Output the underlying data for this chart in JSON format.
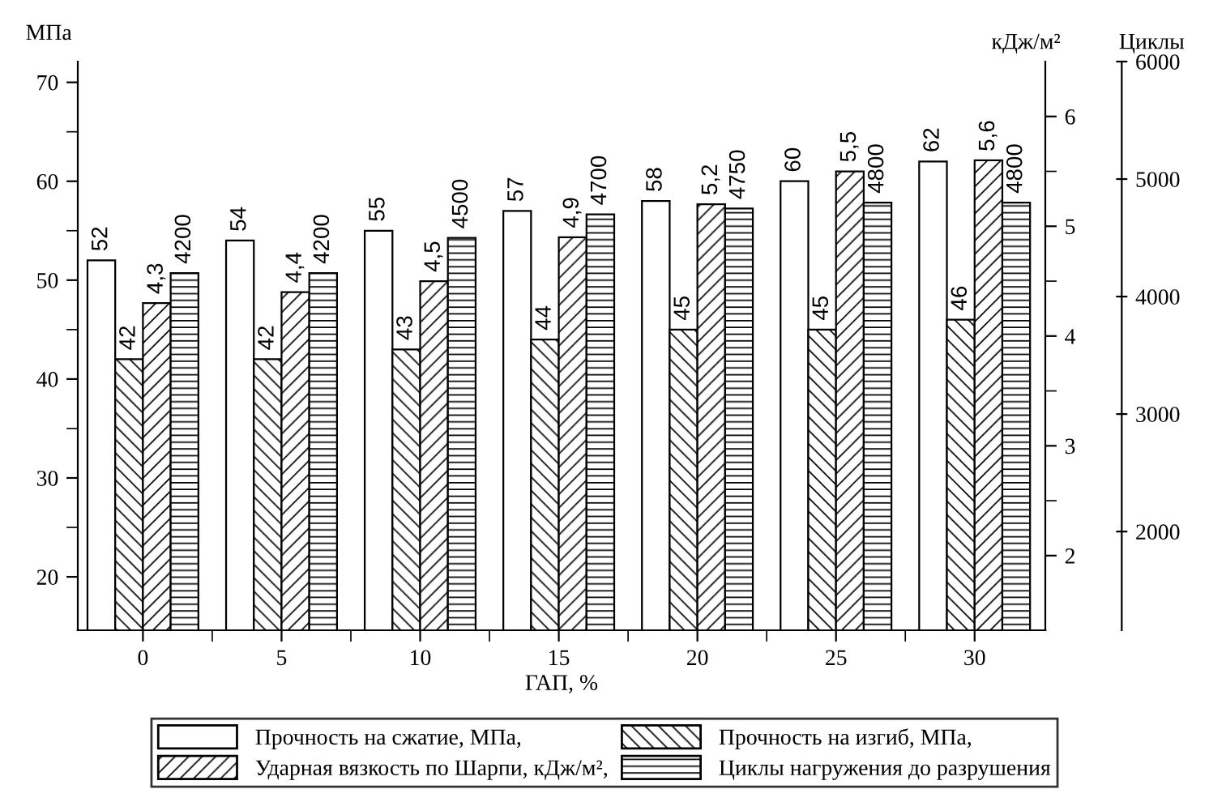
{
  "chart_data": {
    "type": "bar",
    "xlabel": "ГАП, %",
    "ylabel": "МПа",
    "y2label": "кДж/м²",
    "y3label": "Циклы",
    "categories": [
      "0",
      "5",
      "10",
      "15",
      "20",
      "25",
      "30"
    ],
    "series": [
      {
        "name": "Прочность на сжатие, МПа,",
        "color": "#ffffff",
        "values": [
          52,
          54,
          55,
          57,
          58,
          60,
          62
        ],
        "value_labels": [
          "52",
          "54",
          "55",
          "57",
          "58",
          "60",
          "62"
        ]
      },
      {
        "name": "Прочность на изгиб, МПа,",
        "color": "#000000",
        "values": [
          42,
          42,
          43,
          44,
          45,
          45,
          46
        ],
        "value_labels": [
          "42",
          "42",
          "43",
          "44",
          "45",
          "45",
          "46"
        ]
      },
      {
        "name": "Ударная вязкость по Шарпи, кДж/м²,",
        "color": "#000000",
        "axis": "y2",
        "values": [
          4.3,
          4.4,
          4.5,
          4.9,
          5.2,
          5.5,
          5.6
        ],
        "value_labels": [
          "4,3",
          "4,4",
          "4,5",
          "4,9",
          "5,2",
          "5,5",
          "5,6"
        ]
      },
      {
        "name": "Циклы нагружения до разрушения",
        "color": "#000000",
        "axis": "y3",
        "values": [
          4200,
          4200,
          4500,
          4700,
          4750,
          4800,
          4800
        ],
        "value_labels": [
          "4200",
          "4200",
          "4500",
          "4700",
          "4750",
          "4800",
          "4800"
        ]
      }
    ],
    "ylim": [
      14.6,
      72.1
    ],
    "yticks": [
      20,
      {
        "value": 25,
        "label": null
      },
      30,
      {
        "value": 35,
        "label": null
      },
      40,
      {
        "value": 45,
        "label": null
      },
      50,
      {
        "value": 55,
        "label": null
      },
      60,
      {
        "value": 65,
        "label": null
      },
      70
    ],
    "y2lim": [
      1.32,
      6.5
    ],
    "y2ticks": [
      2,
      {
        "value": 2.5,
        "label": null
      },
      3,
      {
        "value": 3.5,
        "label": null
      },
      4,
      {
        "value": 4.5,
        "label": null
      },
      5,
      {
        "value": 5.5,
        "label": null
      },
      6
    ],
    "y3lim": [
      1160,
      6000
    ],
    "y3ticks": [
      2000,
      3000,
      4000,
      5000,
      6000
    ],
    "legend": "bottom",
    "grid": false
  }
}
